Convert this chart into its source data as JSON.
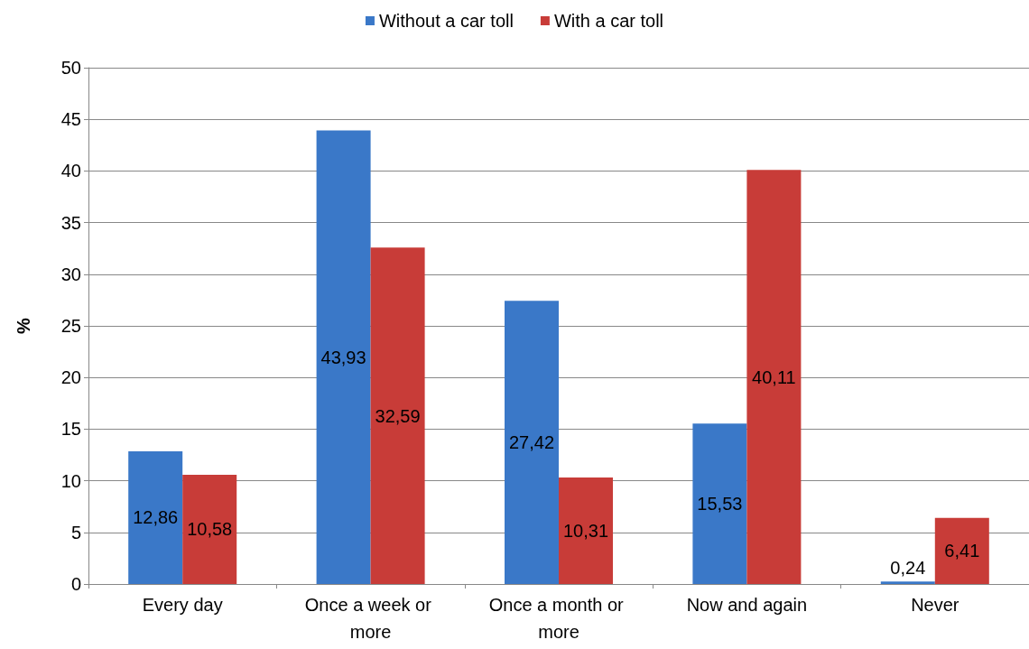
{
  "chart_data": {
    "type": "bar",
    "ylabel": "%",
    "categories": [
      "Every day",
      "Once a week or more",
      "Once a month or more",
      "Now and again",
      "Never"
    ],
    "series": [
      {
        "name": "Without a car toll",
        "color": "#3a78c8",
        "values": [
          12.86,
          43.93,
          27.42,
          15.53,
          0.24
        ],
        "value_labels": [
          "12,86",
          "43,93",
          "27,42",
          "15,53",
          "0,24"
        ]
      },
      {
        "name": "With a car toll",
        "color": "#c83c38",
        "values": [
          10.58,
          32.59,
          10.31,
          40.11,
          6.41
        ],
        "value_labels": [
          "10,58",
          "32,59",
          "10,31",
          "40,11",
          "6,41"
        ]
      }
    ],
    "ylim": [
      0,
      50
    ],
    "yticks": [
      0,
      5,
      10,
      15,
      20,
      25,
      30,
      35,
      40,
      45,
      50
    ],
    "grid": "y",
    "legend": "top"
  }
}
